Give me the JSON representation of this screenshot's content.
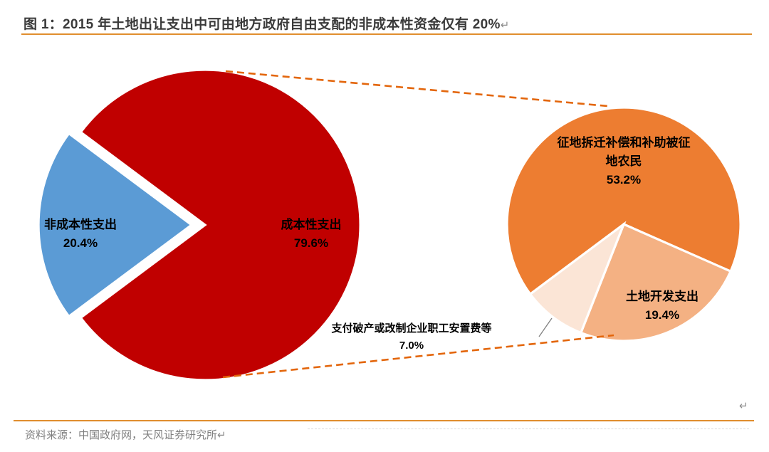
{
  "header": {
    "title": "图 1：2015 年土地出让支出中可由地方政府自由支配的非成本性资金仅有 20%",
    "paragraph_mark": "↵"
  },
  "chart_data": [
    {
      "type": "pie",
      "name": "land-transfer-expenditure-split",
      "unit": "%",
      "labels_position": "inside",
      "legend": "none",
      "slices": [
        {
          "name": "non-cost-expenditure",
          "label": "非成本性支出",
          "pct_label": "20.4%",
          "value": 20.4,
          "color": "#5B9BD5",
          "exploded": true
        },
        {
          "name": "cost-expenditure",
          "label": "成本性支出",
          "pct_label": "79.6%",
          "value": 79.6,
          "color": "#C00000",
          "exploded": false
        }
      ]
    },
    {
      "type": "pie",
      "name": "cost-expenditure-breakdown",
      "unit": "%",
      "total": 79.6,
      "legend": "none",
      "slices": [
        {
          "name": "land-acquisition-compensation",
          "label": "征地拆迁补偿和补助被征地农民",
          "label_lines": [
            "征地拆迁补偿和补助被征",
            "地农民"
          ],
          "pct_label": "53.2%",
          "value": 53.2,
          "color": "#ED7D31",
          "label_position": "inside"
        },
        {
          "name": "land-development-expenditure",
          "label": "土地开发支出",
          "pct_label": "19.4%",
          "value": 19.4,
          "color": "#F4B183",
          "label_position": "inside"
        },
        {
          "name": "worker-resettlement-fees",
          "label": "支付破产或改制企业职工安置费等",
          "pct_label": "7.0%",
          "value": 7.0,
          "color": "#FBE5D6",
          "label_position": "outside-with-leader"
        }
      ]
    }
  ],
  "footer": {
    "source": "资料来源：中国政府网，天风证券研究所",
    "paragraph_mark": "↵",
    "stray_paragraph_mark": "↵"
  },
  "colors": {
    "accent_rule": "#E08E2E",
    "connector_dash": "#E3660C",
    "leader_line": "#7F7F7F",
    "slice_gap": "#FFFFFF",
    "title_text": "#3A3A3A",
    "source_text": "#7F7F7F",
    "label_text": "#000000",
    "paragraph_mark": "#8C8C8C"
  }
}
